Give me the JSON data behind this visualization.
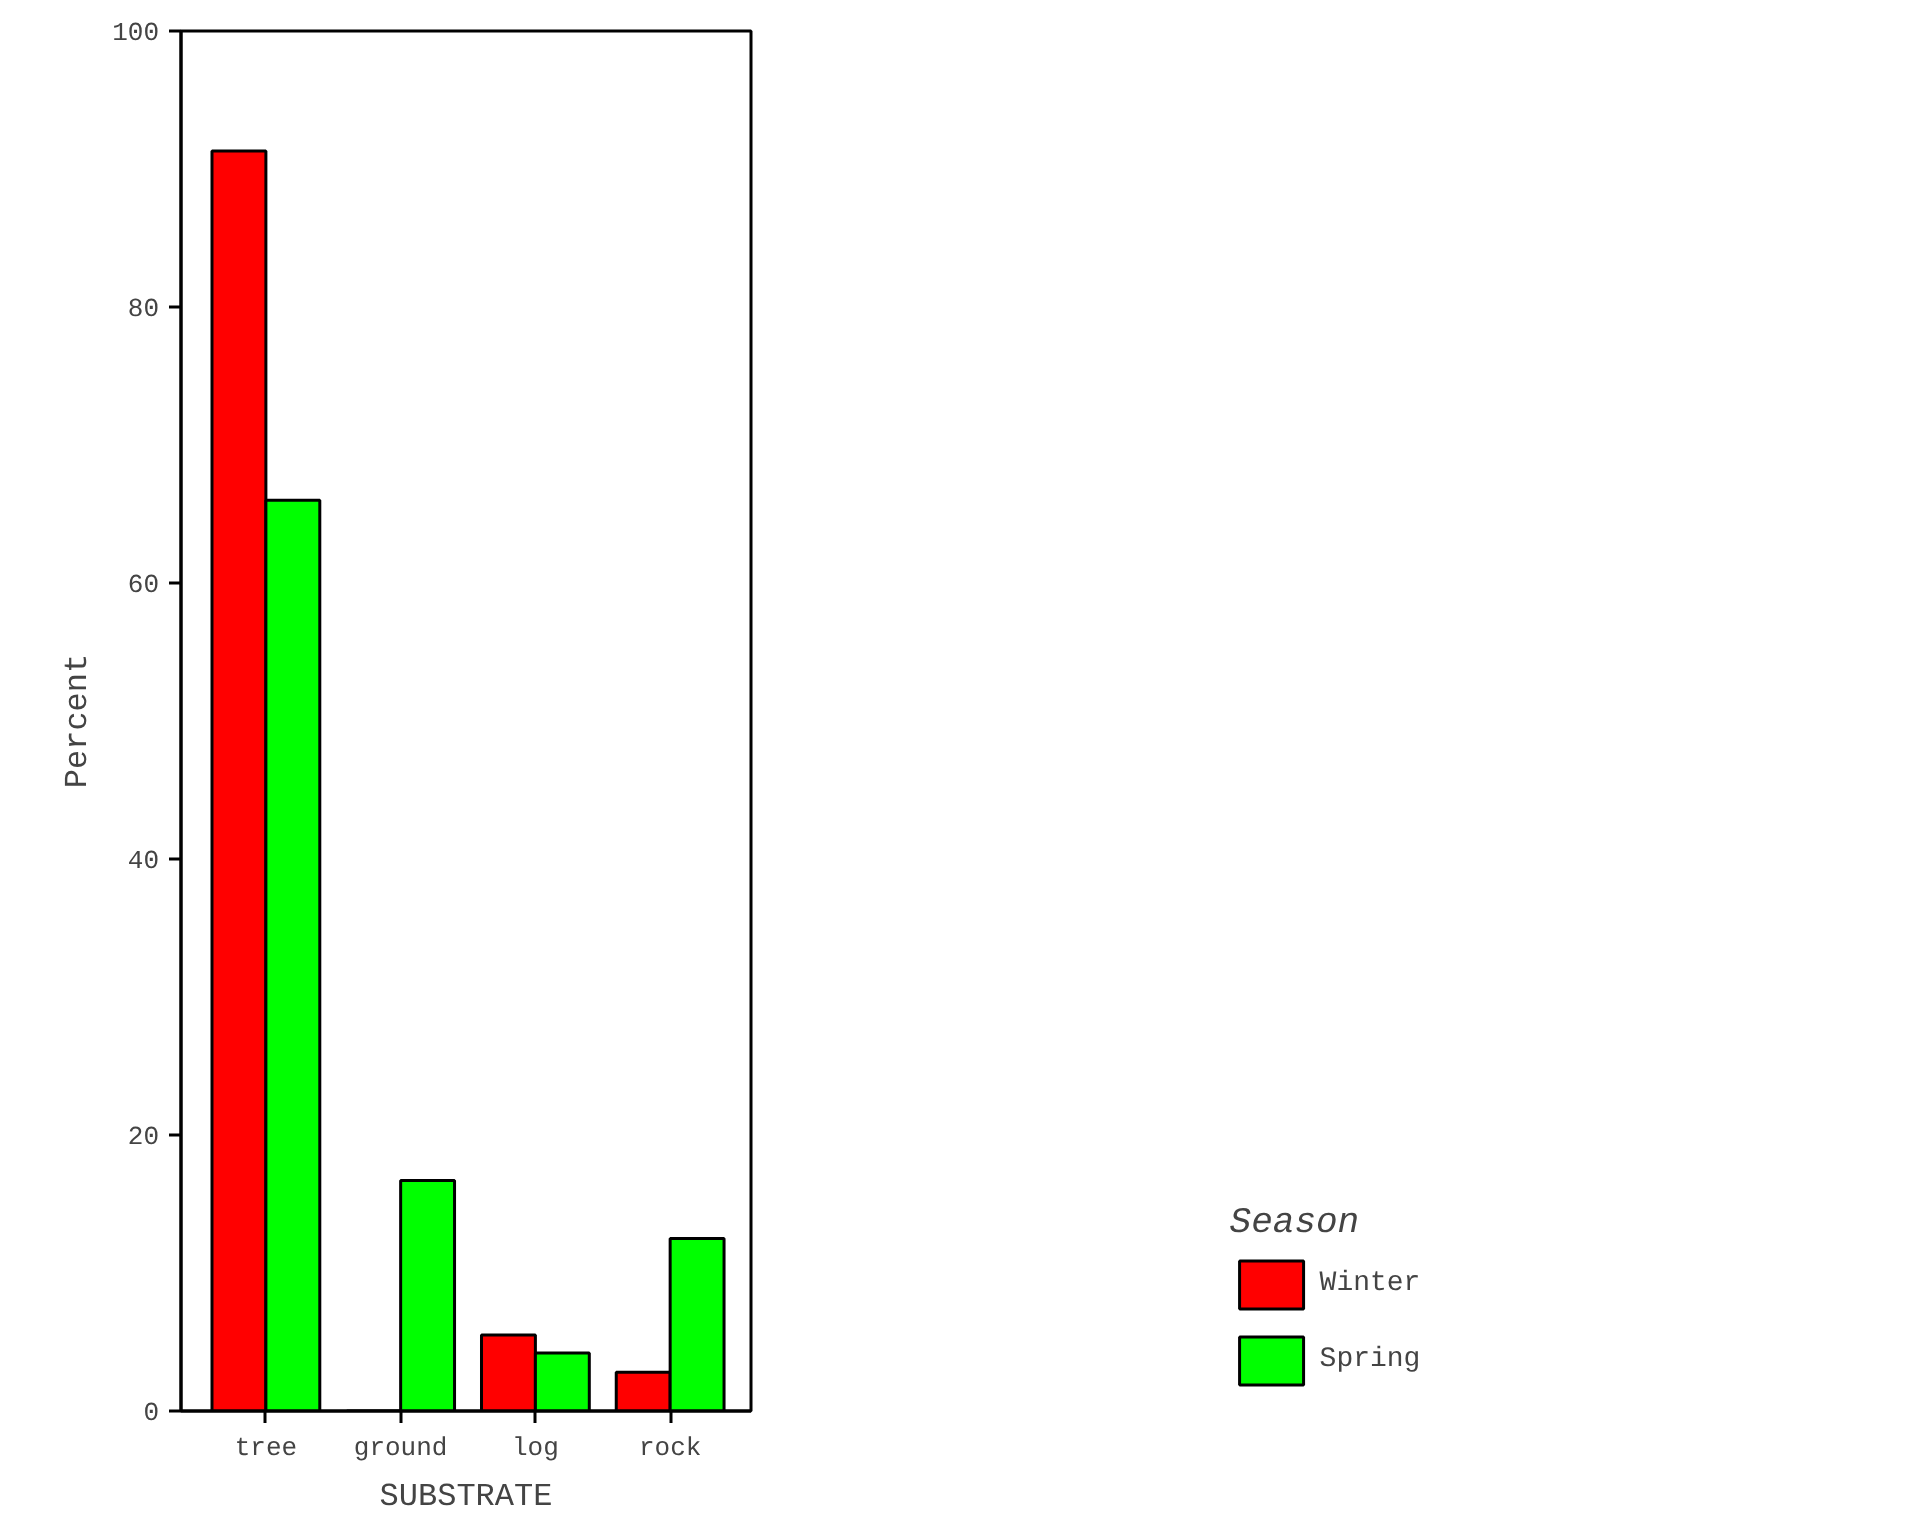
{
  "chart_data": {
    "type": "bar",
    "xlabel": "SUBSTRATE",
    "ylabel": "Percent",
    "legend_title": "Season",
    "categories": [
      "tree",
      "ground",
      "log",
      "rock"
    ],
    "series": [
      {
        "name": "Winter",
        "color": "#ff0000",
        "values": [
          91.3,
          0,
          5.5,
          2.8
        ]
      },
      {
        "name": "Spring",
        "color": "#00ff00",
        "values": [
          66.0,
          16.7,
          4.2,
          12.5
        ]
      }
    ],
    "ylim": [
      0,
      100
    ],
    "yticks": [
      0,
      20,
      40,
      60,
      80,
      100
    ],
    "grid": false,
    "legend": "bottom right"
  }
}
